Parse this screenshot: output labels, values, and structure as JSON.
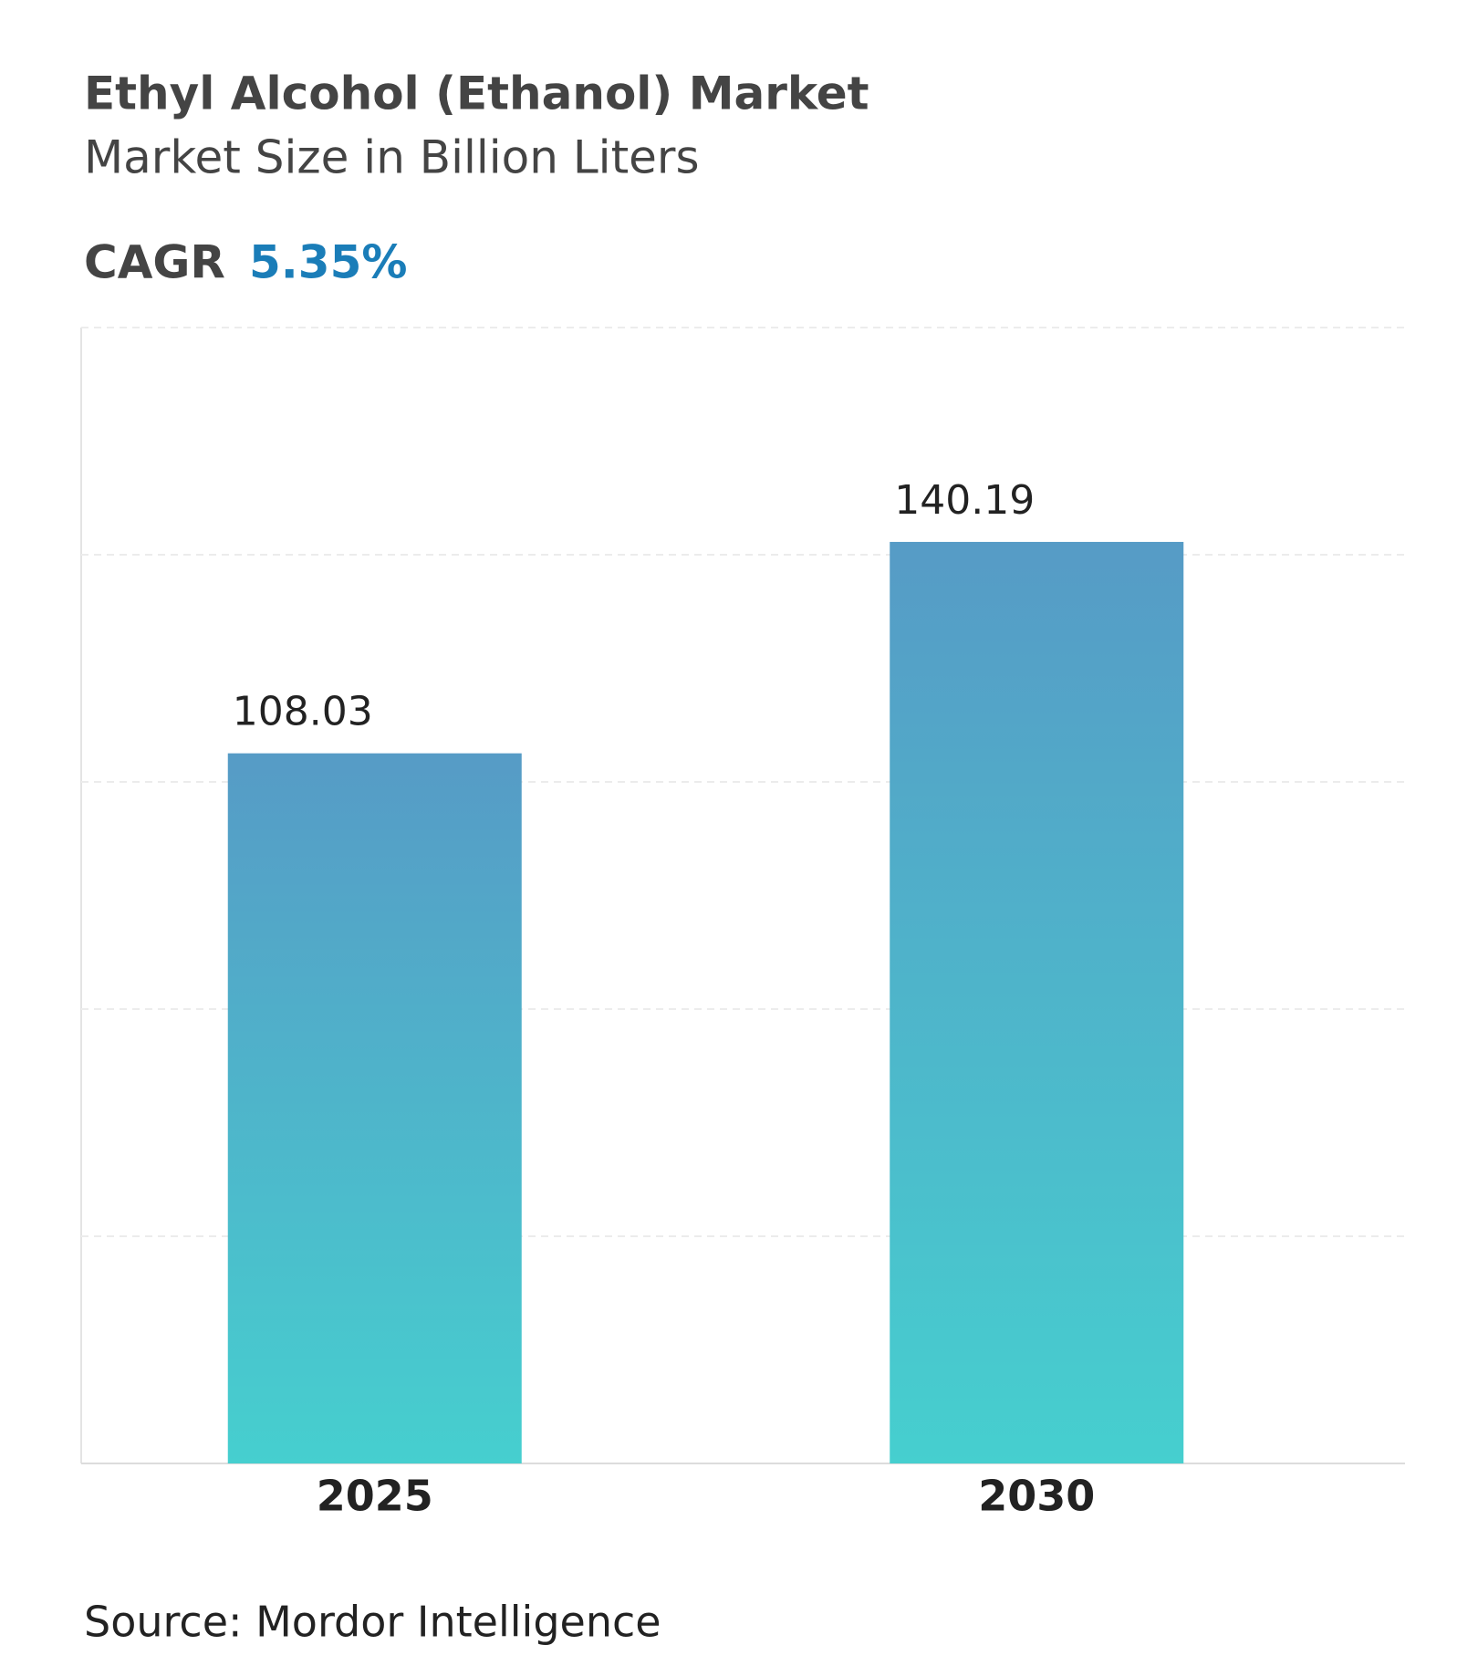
{
  "chart_data": {
    "type": "bar",
    "title": "Ethyl Alcohol (Ethanol) Market",
    "subtitle": "Market Size in Billion Liters",
    "cagr": {
      "label": "CAGR",
      "value": "5.35%"
    },
    "categories": [
      "2025",
      "2030"
    ],
    "values": [
      108.03,
      140.19
    ],
    "gradient": [
      "#569bc6",
      "#46cfcf"
    ],
    "ylim": [
      0,
      172.8
    ],
    "yticks": [
      0,
      34.56,
      69.12,
      103.68,
      138.24,
      172.8
    ],
    "grid": true,
    "source": "Source: Mordor Intelligence"
  }
}
